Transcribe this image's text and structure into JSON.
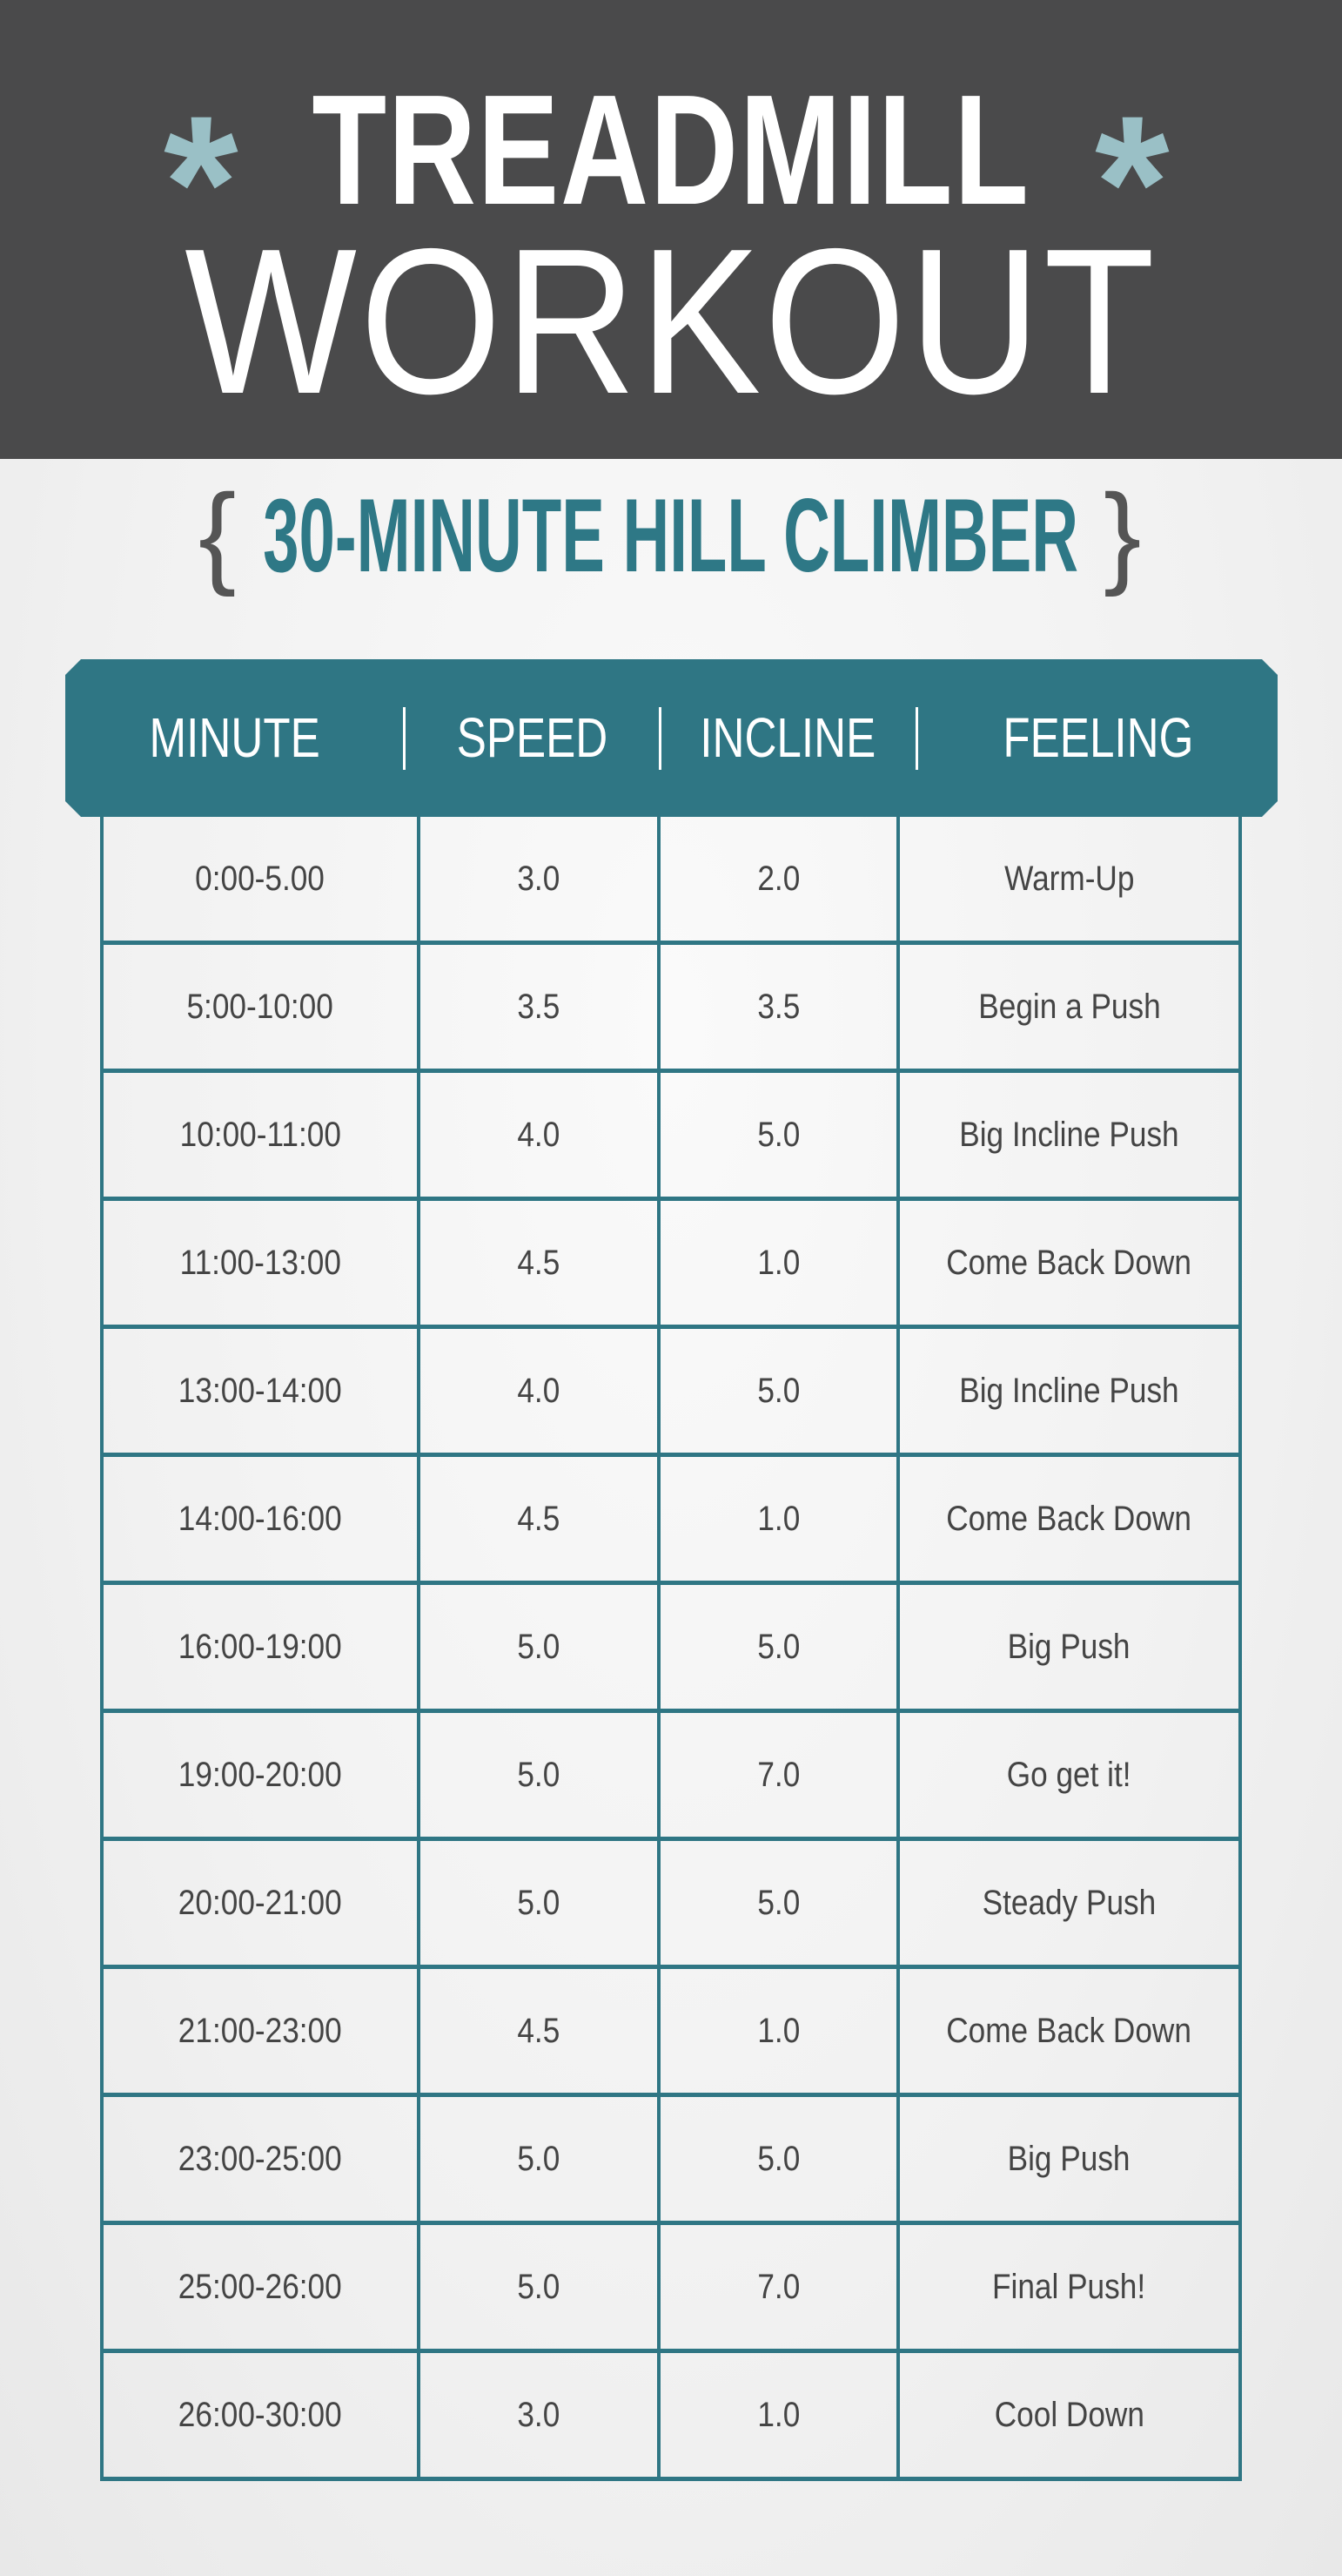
{
  "title": {
    "line1": "TREADMILL",
    "line2": "WORKOUT",
    "asterisk": "*",
    "asterisk_color": "#9ac0c6"
  },
  "subtitle": {
    "text": "30-MINUTE HILL CLIMBER",
    "open_brace": "{",
    "close_brace": "}",
    "color": "#2e7886"
  },
  "table": {
    "headers": [
      "MINUTE",
      "SPEED",
      "INCLINE",
      "FEELING"
    ],
    "accent_color": "#2f7684",
    "rows": [
      [
        "0:00-5.00",
        "3.0",
        "2.0",
        "Warm-Up"
      ],
      [
        "5:00-10:00",
        "3.5",
        "3.5",
        "Begin a Push"
      ],
      [
        "10:00-11:00",
        "4.0",
        "5.0",
        "Big Incline Push"
      ],
      [
        "11:00-13:00",
        "4.5",
        "1.0",
        "Come Back Down"
      ],
      [
        "13:00-14:00",
        "4.0",
        "5.0",
        "Big Incline Push"
      ],
      [
        "14:00-16:00",
        "4.5",
        "1.0",
        "Come Back Down"
      ],
      [
        "16:00-19:00",
        "5.0",
        "5.0",
        "Big Push"
      ],
      [
        "19:00-20:00",
        "5.0",
        "7.0",
        "Go get it!"
      ],
      [
        "20:00-21:00",
        "5.0",
        "5.0",
        "Steady Push"
      ],
      [
        "21:00-23:00",
        "4.5",
        "1.0",
        "Come Back Down"
      ],
      [
        "23:00-25:00",
        "5.0",
        "5.0",
        "Big Push"
      ],
      [
        "25:00-26:00",
        "5.0",
        "7.0",
        "Final Push!"
      ],
      [
        "26:00-30:00",
        "3.0",
        "1.0",
        "Cool Down"
      ]
    ]
  }
}
